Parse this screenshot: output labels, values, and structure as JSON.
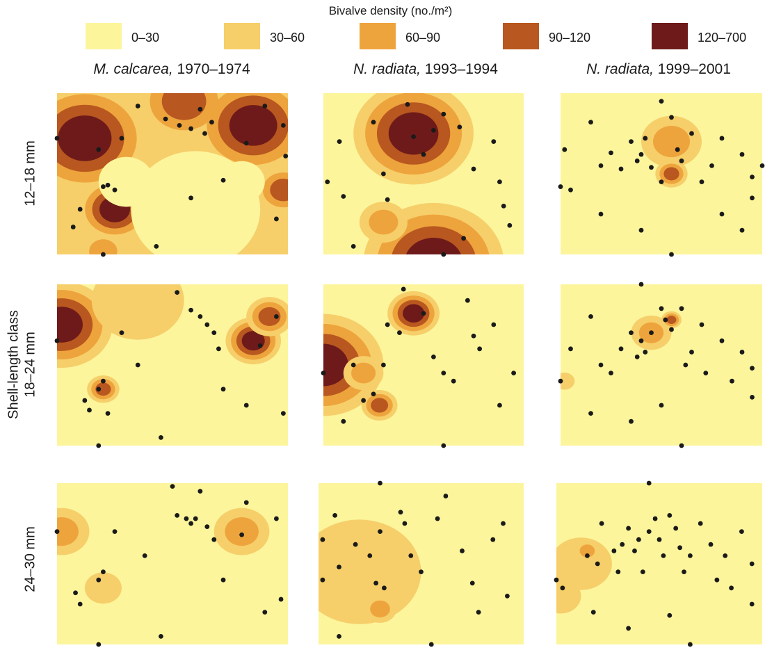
{
  "legend": {
    "title": "Bivalve density (no./m²)",
    "classes": [
      {
        "label": "0–30",
        "color": "#fcf59c"
      },
      {
        "label": "30–60",
        "color": "#f6cf6a"
      },
      {
        "label": "60–90",
        "color": "#eea43d"
      },
      {
        "label": "90–120",
        "color": "#b8571f"
      },
      {
        "label": "120–700",
        "color": "#6e1a1a"
      }
    ]
  },
  "columns": [
    {
      "species": "M. calcarea,",
      "years": " 1970–1974"
    },
    {
      "species": "N. radiata,",
      "years": " 1993–1994"
    },
    {
      "species": "N. radiata,",
      "years": " 1999–2001"
    }
  ],
  "rows": [
    "12–18 mm",
    "18–24 mm",
    "24–30 mm"
  ],
  "y_title": "Shell-length class",
  "chart_data": {
    "type": "heatmap",
    "description_units": "density classes (no./m²) on a 3x3 grid of contour maps; station points in normalized map coordinates",
    "panels": [
      {
        "row": "12–18 mm",
        "column": "M. calcarea, 1970–1974",
        "base_class": 1,
        "hotspots": [
          [
            0.12,
            0.28,
            0.28,
            4
          ],
          [
            0.85,
            0.2,
            0.25,
            4
          ],
          [
            0.25,
            0.72,
            0.16,
            4
          ],
          [
            0.55,
            0.05,
            0.2,
            3
          ],
          [
            0.98,
            0.6,
            0.12,
            3
          ],
          [
            0.2,
            0.98,
            0.1,
            2
          ]
        ],
        "lowspots": [
          [
            0.6,
            0.72,
            0.28
          ],
          [
            0.3,
            0.55,
            0.12
          ],
          [
            0.8,
            0.55,
            0.1
          ]
        ],
        "stations": [
          [
            0.0,
            0.28
          ],
          [
            0.1,
            0.72
          ],
          [
            0.07,
            0.83
          ],
          [
            0.2,
            0.58
          ],
          [
            0.22,
            0.57
          ],
          [
            0.25,
            0.6
          ],
          [
            0.18,
            0.35
          ],
          [
            0.28,
            0.28
          ],
          [
            0.35,
            0.08
          ],
          [
            0.47,
            0.16
          ],
          [
            0.53,
            0.2
          ],
          [
            0.58,
            0.22
          ],
          [
            0.62,
            0.1
          ],
          [
            0.64,
            0.25
          ],
          [
            0.67,
            0.18
          ],
          [
            0.58,
            0.65
          ],
          [
            0.72,
            0.54
          ],
          [
            0.82,
            0.31
          ],
          [
            0.9,
            0.08
          ],
          [
            0.95,
            0.78
          ],
          [
            0.98,
            0.2
          ],
          [
            0.99,
            0.39
          ],
          [
            0.43,
            0.95
          ],
          [
            0.2,
            1.0
          ]
        ]
      },
      {
        "row": "12–18 mm",
        "column": "N. radiata, 1993–1994",
        "base_class": 0,
        "hotspots": [
          [
            0.45,
            0.25,
            0.3,
            4
          ],
          [
            0.55,
            1.05,
            0.35,
            4
          ],
          [
            0.3,
            0.8,
            0.12,
            2
          ]
        ],
        "lowspots": [],
        "stations": [
          [
            0.02,
            0.55
          ],
          [
            0.08,
            0.3
          ],
          [
            0.1,
            0.64
          ],
          [
            0.25,
            0.18
          ],
          [
            0.3,
            0.5
          ],
          [
            0.32,
            0.66
          ],
          [
            0.42,
            0.07
          ],
          [
            0.45,
            0.27
          ],
          [
            0.5,
            0.38
          ],
          [
            0.55,
            0.23
          ],
          [
            0.6,
            0.13
          ],
          [
            0.68,
            0.21
          ],
          [
            0.75,
            0.47
          ],
          [
            0.7,
            0.9
          ],
          [
            0.85,
            0.3
          ],
          [
            0.88,
            0.55
          ],
          [
            0.9,
            0.7
          ],
          [
            0.93,
            0.82
          ],
          [
            0.6,
            1.0
          ],
          [
            0.15,
            0.95
          ]
        ]
      },
      {
        "row": "12–18 mm",
        "column": "N. radiata, 1999–2001",
        "base_class": 0,
        "hotspots": [
          [
            0.55,
            0.3,
            0.15,
            2
          ],
          [
            0.55,
            0.5,
            0.08,
            3
          ]
        ],
        "lowspots": [],
        "stations": [
          [
            0.0,
            0.58
          ],
          [
            0.05,
            0.6
          ],
          [
            0.02,
            0.35
          ],
          [
            0.15,
            0.18
          ],
          [
            0.2,
            0.45
          ],
          [
            0.25,
            0.37
          ],
          [
            0.3,
            0.47
          ],
          [
            0.35,
            0.3
          ],
          [
            0.38,
            0.42
          ],
          [
            0.4,
            0.38
          ],
          [
            0.42,
            0.28
          ],
          [
            0.45,
            0.46
          ],
          [
            0.5,
            0.55
          ],
          [
            0.55,
            0.15
          ],
          [
            0.58,
            0.35
          ],
          [
            0.6,
            0.42
          ],
          [
            0.65,
            0.25
          ],
          [
            0.7,
            0.55
          ],
          [
            0.75,
            0.45
          ],
          [
            0.8,
            0.28
          ],
          [
            0.8,
            0.75
          ],
          [
            0.9,
            0.38
          ],
          [
            0.95,
            0.52
          ],
          [
            1.0,
            0.45
          ],
          [
            0.95,
            0.65
          ],
          [
            0.9,
            0.85
          ],
          [
            0.55,
            1.0
          ],
          [
            0.4,
            0.85
          ],
          [
            0.2,
            0.75
          ],
          [
            0.5,
            0.05
          ]
        ]
      },
      {
        "row": "18–24 mm",
        "column": "M. calcarea, 1970–1974",
        "base_class": 0,
        "hotspots": [
          [
            0.02,
            0.25,
            0.22,
            4
          ],
          [
            0.85,
            0.35,
            0.12,
            4
          ],
          [
            0.2,
            0.65,
            0.07,
            3
          ],
          [
            0.92,
            0.2,
            0.1,
            3
          ],
          [
            0.35,
            0.1,
            0.2,
            1
          ]
        ],
        "lowspots": [],
        "stations": [
          [
            0.0,
            0.35
          ],
          [
            0.12,
            0.72
          ],
          [
            0.14,
            0.78
          ],
          [
            0.22,
            0.8
          ],
          [
            0.18,
            0.65
          ],
          [
            0.2,
            0.6
          ],
          [
            0.28,
            0.3
          ],
          [
            0.35,
            0.5
          ],
          [
            0.45,
            0.95
          ],
          [
            0.52,
            0.05
          ],
          [
            0.58,
            0.16
          ],
          [
            0.62,
            0.2
          ],
          [
            0.65,
            0.25
          ],
          [
            0.68,
            0.3
          ],
          [
            0.7,
            0.4
          ],
          [
            0.72,
            0.65
          ],
          [
            0.82,
            0.75
          ],
          [
            0.88,
            0.38
          ],
          [
            0.95,
            0.2
          ],
          [
            0.98,
            0.8
          ],
          [
            0.18,
            1.0
          ]
        ]
      },
      {
        "row": "18–24 mm",
        "column": "N. radiata, 1993–1994",
        "base_class": 0,
        "hotspots": [
          [
            0.0,
            0.5,
            0.3,
            4
          ],
          [
            0.45,
            0.18,
            0.13,
            4
          ],
          [
            0.28,
            0.75,
            0.09,
            3
          ],
          [
            0.2,
            0.55,
            0.1,
            2
          ]
        ],
        "lowspots": [],
        "stations": [
          [
            0.0,
            0.55
          ],
          [
            0.15,
            0.5
          ],
          [
            0.2,
            0.72
          ],
          [
            0.25,
            0.68
          ],
          [
            0.3,
            0.5
          ],
          [
            0.32,
            0.25
          ],
          [
            0.38,
            0.3
          ],
          [
            0.4,
            0.03
          ],
          [
            0.5,
            0.18
          ],
          [
            0.55,
            0.45
          ],
          [
            0.6,
            0.55
          ],
          [
            0.65,
            0.6
          ],
          [
            0.72,
            0.1
          ],
          [
            0.75,
            0.32
          ],
          [
            0.78,
            0.4
          ],
          [
            0.85,
            0.25
          ],
          [
            0.88,
            0.75
          ],
          [
            0.95,
            0.55
          ],
          [
            0.6,
            1.0
          ],
          [
            0.1,
            0.85
          ]
        ]
      },
      {
        "row": "18–24 mm",
        "column": "N. radiata, 1999–2001",
        "base_class": 0,
        "hotspots": [
          [
            0.45,
            0.3,
            0.1,
            2
          ],
          [
            0.55,
            0.22,
            0.05,
            3
          ],
          [
            0.02,
            0.6,
            0.05,
            1
          ]
        ],
        "lowspots": [],
        "stations": [
          [
            0.0,
            0.6
          ],
          [
            0.05,
            0.4
          ],
          [
            0.15,
            0.2
          ],
          [
            0.2,
            0.5
          ],
          [
            0.25,
            0.55
          ],
          [
            0.3,
            0.4
          ],
          [
            0.35,
            0.3
          ],
          [
            0.38,
            0.45
          ],
          [
            0.4,
            0.35
          ],
          [
            0.42,
            0.42
          ],
          [
            0.45,
            0.3
          ],
          [
            0.5,
            0.15
          ],
          [
            0.52,
            0.22
          ],
          [
            0.55,
            0.28
          ],
          [
            0.6,
            0.15
          ],
          [
            0.62,
            0.5
          ],
          [
            0.65,
            0.42
          ],
          [
            0.7,
            0.25
          ],
          [
            0.72,
            0.55
          ],
          [
            0.8,
            0.35
          ],
          [
            0.85,
            0.6
          ],
          [
            0.9,
            0.42
          ],
          [
            0.95,
            0.7
          ],
          [
            0.95,
            0.52
          ],
          [
            0.5,
            0.75
          ],
          [
            0.35,
            0.85
          ],
          [
            0.15,
            0.8
          ],
          [
            0.6,
            1.0
          ],
          [
            0.4,
            0.0
          ]
        ]
      },
      {
        "row": "24–30 mm",
        "column": "M. calcarea, 1970–1974",
        "base_class": 0,
        "hotspots": [
          [
            0.02,
            0.3,
            0.12,
            2
          ],
          [
            0.8,
            0.3,
            0.12,
            2
          ],
          [
            0.2,
            0.65,
            0.08,
            1
          ]
        ],
        "lowspots": [],
        "stations": [
          [
            0.0,
            0.3
          ],
          [
            0.08,
            0.68
          ],
          [
            0.1,
            0.75
          ],
          [
            0.18,
            0.6
          ],
          [
            0.2,
            0.55
          ],
          [
            0.25,
            0.3
          ],
          [
            0.38,
            0.45
          ],
          [
            0.45,
            0.95
          ],
          [
            0.5,
            0.02
          ],
          [
            0.52,
            0.2
          ],
          [
            0.56,
            0.22
          ],
          [
            0.58,
            0.25
          ],
          [
            0.6,
            0.22
          ],
          [
            0.62,
            0.05
          ],
          [
            0.65,
            0.27
          ],
          [
            0.68,
            0.35
          ],
          [
            0.72,
            0.6
          ],
          [
            0.8,
            0.32
          ],
          [
            0.82,
            0.12
          ],
          [
            0.9,
            0.8
          ],
          [
            0.95,
            0.22
          ],
          [
            0.97,
            0.72
          ],
          [
            0.18,
            1.0
          ]
        ]
      },
      {
        "row": "24–30 mm",
        "column": "N. radiata, 1993–1994",
        "base_class": 0,
        "hotspots": [
          [
            0.2,
            0.55,
            0.3,
            1
          ],
          [
            0.3,
            0.78,
            0.08,
            2
          ]
        ],
        "lowspots": [],
        "stations": [
          [
            0.02,
            0.35
          ],
          [
            0.02,
            0.6
          ],
          [
            0.08,
            0.2
          ],
          [
            0.1,
            0.52
          ],
          [
            0.18,
            0.38
          ],
          [
            0.25,
            0.45
          ],
          [
            0.28,
            0.62
          ],
          [
            0.3,
            0.3
          ],
          [
            0.32,
            0.65
          ],
          [
            0.4,
            0.18
          ],
          [
            0.42,
            0.25
          ],
          [
            0.45,
            0.45
          ],
          [
            0.5,
            0.55
          ],
          [
            0.58,
            0.22
          ],
          [
            0.62,
            0.08
          ],
          [
            0.7,
            0.42
          ],
          [
            0.75,
            0.62
          ],
          [
            0.78,
            0.8
          ],
          [
            0.85,
            0.35
          ],
          [
            0.9,
            0.25
          ],
          [
            0.92,
            0.7
          ],
          [
            0.55,
            1.0
          ],
          [
            0.1,
            0.95
          ],
          [
            0.3,
            0.0
          ]
        ]
      },
      {
        "row": "24–30 mm",
        "column": "N. radiata, 1999–2001",
        "base_class": 0,
        "hotspots": [
          [
            0.12,
            0.5,
            0.15,
            1
          ],
          [
            0.15,
            0.42,
            0.06,
            2
          ],
          [
            0.02,
            0.7,
            0.1,
            1
          ]
        ],
        "lowspots": [],
        "stations": [
          [
            0.0,
            0.6
          ],
          [
            0.03,
            0.65
          ],
          [
            0.15,
            0.45
          ],
          [
            0.18,
            0.8
          ],
          [
            0.2,
            0.5
          ],
          [
            0.22,
            0.25
          ],
          [
            0.28,
            0.42
          ],
          [
            0.3,
            0.55
          ],
          [
            0.32,
            0.38
          ],
          [
            0.35,
            0.28
          ],
          [
            0.38,
            0.42
          ],
          [
            0.4,
            0.35
          ],
          [
            0.42,
            0.55
          ],
          [
            0.45,
            0.3
          ],
          [
            0.48,
            0.22
          ],
          [
            0.5,
            0.35
          ],
          [
            0.52,
            0.45
          ],
          [
            0.55,
            0.2
          ],
          [
            0.58,
            0.28
          ],
          [
            0.6,
            0.4
          ],
          [
            0.62,
            0.55
          ],
          [
            0.65,
            0.45
          ],
          [
            0.7,
            0.25
          ],
          [
            0.75,
            0.38
          ],
          [
            0.78,
            0.6
          ],
          [
            0.82,
            0.45
          ],
          [
            0.85,
            0.65
          ],
          [
            0.9,
            0.3
          ],
          [
            0.95,
            0.5
          ],
          [
            0.95,
            0.75
          ],
          [
            0.55,
            0.82
          ],
          [
            0.35,
            0.9
          ],
          [
            0.65,
            1.0
          ],
          [
            0.45,
            0.0
          ]
        ]
      }
    ]
  }
}
